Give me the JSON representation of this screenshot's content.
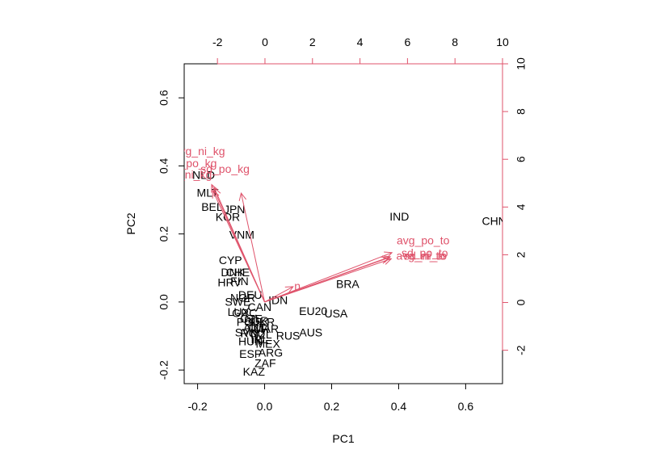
{
  "chart_data": {
    "type": "scatter",
    "subtype": "biplot",
    "xlabel": "PC1",
    "ylabel": "PC2",
    "xlim": [
      -0.24,
      0.71
    ],
    "ylim": [
      -0.24,
      0.7
    ],
    "x_ticks": [
      -0.2,
      0.0,
      0.2,
      0.4,
      0.6
    ],
    "y_ticks": [
      -0.2,
      0.0,
      0.2,
      0.4,
      0.6
    ],
    "x_tick_labels": [
      "-0.2",
      "0.0",
      "0.2",
      "0.4",
      "0.6"
    ],
    "y_tick_labels": [
      "-0.2",
      "0.0",
      "0.2",
      "0.4",
      "0.6"
    ],
    "top_axis": {
      "lim": [
        -3.4,
        10.0
      ],
      "ticks": [
        -2,
        0,
        2,
        4,
        6,
        8,
        10
      ],
      "tick_labels": [
        "-2",
        "0",
        "2",
        "4",
        "6",
        "8",
        "10"
      ]
    },
    "right_axis": {
      "lim": [
        -3.4,
        10.0
      ],
      "ticks": [
        -2,
        0,
        2,
        4,
        6,
        8,
        10
      ],
      "tick_labels": [
        "-2",
        "0",
        "2",
        "4",
        "6",
        "8",
        "10"
      ]
    },
    "grid": false,
    "observations": [
      {
        "label": "CHN",
        "x": 0.685,
        "y": 0.235
      },
      {
        "label": "IND",
        "x": 0.402,
        "y": 0.248
      },
      {
        "label": "BRA",
        "x": 0.248,
        "y": 0.05
      },
      {
        "label": "USA",
        "x": 0.213,
        "y": -0.037
      },
      {
        "label": "EU20",
        "x": 0.145,
        "y": -0.03
      },
      {
        "label": "AUS",
        "x": 0.138,
        "y": -0.092
      },
      {
        "label": "RUS",
        "x": 0.07,
        "y": -0.102
      },
      {
        "label": "IDN",
        "x": 0.04,
        "y": 0.003
      },
      {
        "label": "ZAF",
        "x": 0.002,
        "y": -0.182
      },
      {
        "label": "ARG",
        "x": 0.018,
        "y": -0.152
      },
      {
        "label": "MEX",
        "x": 0.01,
        "y": -0.125
      },
      {
        "label": "ESP",
        "x": -0.042,
        "y": -0.155
      },
      {
        "label": "HUN",
        "x": -0.042,
        "y": -0.118
      },
      {
        "label": "KAZ",
        "x": -0.032,
        "y": -0.208
      },
      {
        "label": "NLD",
        "x": -0.182,
        "y": 0.37
      },
      {
        "label": "MLT",
        "x": -0.17,
        "y": 0.318
      },
      {
        "label": "BEL",
        "x": -0.157,
        "y": 0.277
      },
      {
        "label": "KOR",
        "x": -0.11,
        "y": 0.247
      },
      {
        "label": "JPN",
        "x": -0.09,
        "y": 0.27
      },
      {
        "label": "VNM",
        "x": -0.068,
        "y": 0.195
      },
      {
        "label": "CYP",
        "x": -0.102,
        "y": 0.12
      },
      {
        "label": "DNK",
        "x": -0.095,
        "y": 0.085
      },
      {
        "label": "CHE",
        "x": -0.08,
        "y": 0.085
      },
      {
        "label": "HRV",
        "x": -0.105,
        "y": 0.055
      },
      {
        "label": "FIN",
        "x": -0.075,
        "y": 0.058
      },
      {
        "label": "DEU",
        "x": -0.043,
        "y": 0.018
      },
      {
        "label": "NOR",
        "x": -0.065,
        "y": 0.01
      },
      {
        "label": "SWE",
        "x": -0.08,
        "y": -0.002
      },
      {
        "label": "CAN",
        "x": -0.015,
        "y": -0.018
      },
      {
        "label": "LUX",
        "x": -0.078,
        "y": -0.032
      },
      {
        "label": "GRC",
        "x": -0.06,
        "y": -0.035
      },
      {
        "label": "UKR",
        "x": -0.005,
        "y": -0.062
      },
      {
        "label": "TUR",
        "x": -0.02,
        "y": -0.082
      },
      {
        "label": "POL",
        "x": -0.05,
        "y": -0.062
      },
      {
        "label": "SVK",
        "x": -0.055,
        "y": -0.092
      },
      {
        "label": "ROU",
        "x": -0.035,
        "y": -0.095
      },
      {
        "label": "AUT",
        "x": -0.03,
        "y": -0.078
      },
      {
        "label": "NZL",
        "x": -0.01,
        "y": -0.098
      },
      {
        "label": "MAR",
        "x": 0.005,
        "y": -0.082
      },
      {
        "label": "IRL",
        "x": -0.015,
        "y": -0.112
      },
      {
        "label": "CZE",
        "x": -0.04,
        "y": -0.052
      },
      {
        "label": "BGR",
        "x": -0.025,
        "y": -0.058
      }
    ],
    "loadings": [
      {
        "label": "avg_po_to",
        "x": 0.38,
        "y": 0.145
      },
      {
        "label": "sd_po_to",
        "x": 0.375,
        "y": 0.133
      },
      {
        "label": "avg_ni_to",
        "x": 0.37,
        "y": 0.13
      },
      {
        "label": "sd_ni_to",
        "x": 0.378,
        "y": 0.127
      },
      {
        "label": "n",
        "x": 0.085,
        "y": 0.045
      },
      {
        "label": "avg_ni_kg",
        "x": -0.158,
        "y": 0.345
      },
      {
        "label": "avg_po_kg",
        "x": -0.15,
        "y": 0.335
      },
      {
        "label": "sd_ni_kg",
        "x": -0.155,
        "y": 0.328
      },
      {
        "label": "sd_po_kg",
        "x": -0.07,
        "y": 0.32
      }
    ],
    "loading_labels": [
      {
        "label": "avg_ni_kg",
        "x": -0.195,
        "y": 0.44
      },
      {
        "label": "avg_po_kg",
        "x": -0.225,
        "y": 0.405
      },
      {
        "label": "sd_po_kg",
        "x": -0.118,
        "y": 0.388
      },
      {
        "label": "sd_ni_kg",
        "x": -0.225,
        "y": 0.372
      },
      {
        "label": "avg_po_to",
        "x": 0.473,
        "y": 0.178
      },
      {
        "label": "sd_po_to",
        "x": 0.478,
        "y": 0.142
      },
      {
        "label": "avg_ni_to",
        "x": 0.466,
        "y": 0.133
      },
      {
        "label": "sd_ni_to",
        "x": 0.48,
        "y": 0.133
      },
      {
        "label": "n",
        "x": 0.098,
        "y": 0.044
      }
    ]
  }
}
